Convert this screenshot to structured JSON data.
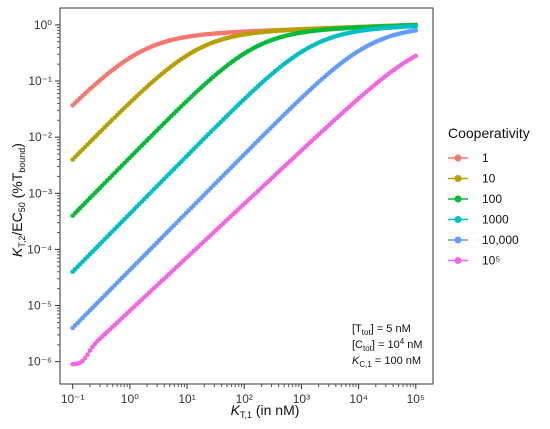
{
  "chart_data": {
    "type": "scatter",
    "xlabel": "K_T,1 (in nM)",
    "ylabel": "K_T,2/EC_50 (%T_bound)",
    "xscale": "log",
    "yscale": "log",
    "xlim": [
      0.06,
      200000
    ],
    "ylim": [
      4e-07,
      2
    ],
    "grid": false,
    "legend_title": "Cooperativity",
    "legend_position": "right",
    "x_tick_labels": [
      "10⁻¹",
      "10⁰",
      "10¹",
      "10²",
      "10³",
      "10⁴",
      "10⁵"
    ],
    "y_tick_labels": [
      "10⁻⁶",
      "10⁻⁵",
      "10⁻⁴",
      "10⁻³",
      "10⁻²",
      "10⁻¹",
      "10⁰"
    ],
    "annotations": [
      "[T_tot] = 5 nM",
      "[C_tot] = 10⁴ nM",
      "K_C,1 = 100 nM"
    ],
    "x_range": [
      0.1,
      100000
    ],
    "series": [
      {
        "name": "1",
        "color": "#F8766D",
        "y_start": 0.037,
        "y_end": 1.0,
        "saturation_x": 1.5
      },
      {
        "name": "10",
        "color": "#B79F00",
        "y_start": 0.004,
        "y_end": 1.0,
        "saturation_x": 15
      },
      {
        "name": "100",
        "color": "#00BA38",
        "y_start": 0.0004,
        "y_end": 0.99,
        "saturation_x": 150
      },
      {
        "name": "1000",
        "color": "#00BFC4",
        "y_start": 4e-05,
        "y_end": 0.95,
        "saturation_x": 1500
      },
      {
        "name": "10,000",
        "color": "#619CFF",
        "y_start": 4e-06,
        "y_end": 0.8,
        "saturation_x": 15000
      },
      {
        "name": "10⁵",
        "color": "#F564E3",
        "y_start": 9e-07,
        "y_end": 0.28,
        "saturation_x": 150000
      }
    ]
  }
}
